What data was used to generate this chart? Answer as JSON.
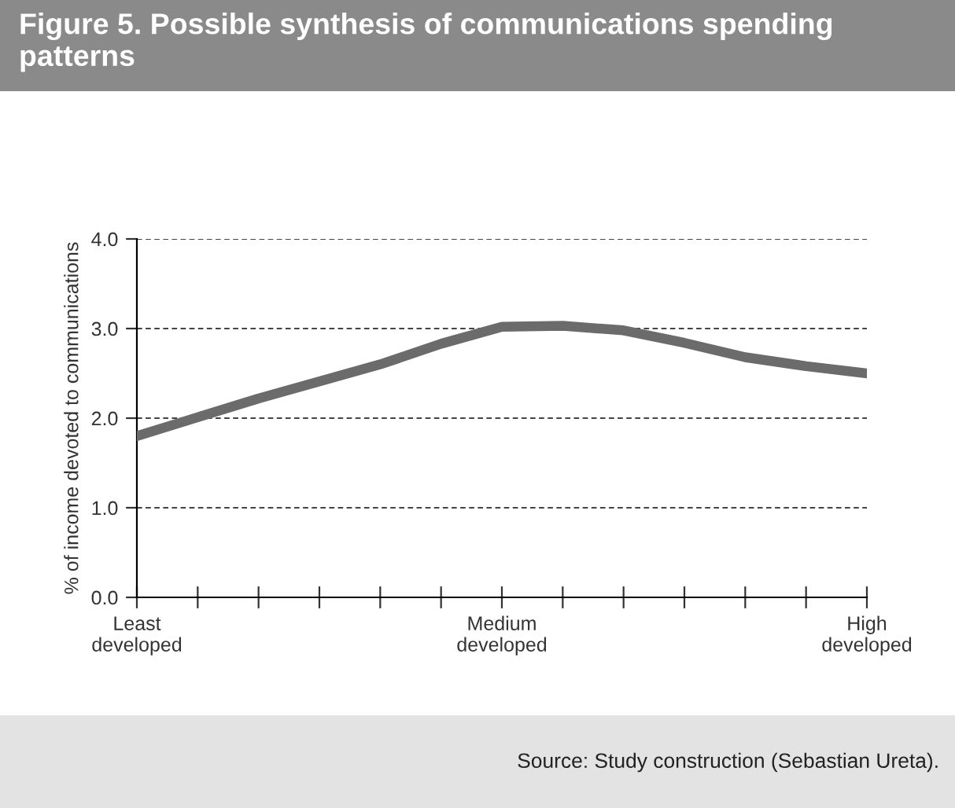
{
  "chart_data": {
    "type": "line",
    "title": "Figure 5. Possible synthesis of communications spending patterns",
    "ylabel": "% of income devoted to communications",
    "annotations": [
      "Source: Study construction (Sebastian Ureta)."
    ],
    "categories": [
      "Least\ndeveloped",
      null,
      null,
      null,
      null,
      null,
      "Medium\ndeveloped",
      null,
      null,
      null,
      null,
      null,
      "High\ndeveloped"
    ],
    "series": [
      {
        "color": "#6b6b6b",
        "values": [
          1.8,
          2.01,
          2.22,
          2.41,
          2.6,
          2.83,
          3.02,
          3.03,
          2.98,
          2.84,
          2.68,
          2.58,
          2.5
        ]
      }
    ],
    "ylim": [
      0,
      4
    ],
    "yticks": [
      {
        "value": 0,
        "label": "0.0"
      },
      {
        "value": 1,
        "label": "1.0"
      },
      {
        "value": 2,
        "label": "2.0"
      },
      {
        "value": 3,
        "label": "3.0"
      },
      {
        "value": 4,
        "label": "4.0"
      }
    ],
    "grid": "y",
    "marker": "none",
    "line_style": "solid"
  }
}
